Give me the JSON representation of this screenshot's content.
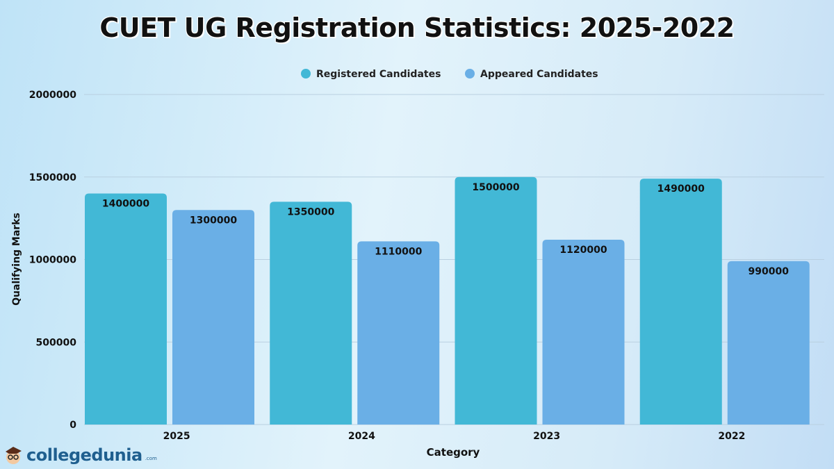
{
  "chart_data": {
    "type": "bar",
    "title": "CUET UG Registration Statistics: 2025-2022",
    "xlabel": "Category",
    "ylabel": "Qualifying Marks",
    "categories": [
      "2025",
      "2024",
      "2023",
      "2022"
    ],
    "series": [
      {
        "name": "Registered Candidates",
        "color": "#42b8d6",
        "values": [
          1400000,
          1350000,
          1500000,
          1490000
        ]
      },
      {
        "name": "Appeared Candidates",
        "color": "#6aafe6",
        "values": [
          1300000,
          1110000,
          1120000,
          990000
        ]
      }
    ],
    "ylim": [
      0,
      2000000
    ],
    "yticks": [
      "0",
      "500000",
      "1000000",
      "1500000",
      "2000000"
    ],
    "grid": true,
    "legend": "top-center",
    "data_labels": true
  },
  "logo": {
    "text": "collegedunia",
    "suffix": ".com"
  }
}
